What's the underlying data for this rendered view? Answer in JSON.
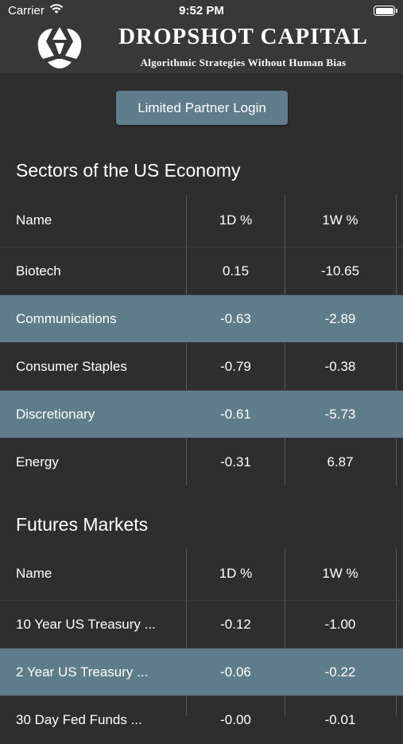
{
  "status_bar": {
    "carrier": "Carrier",
    "time": "9:52 PM"
  },
  "header": {
    "title": "DROPSHOT CAPITAL",
    "subtitle": "Algorithmic Strategies Without Human Bias",
    "logo_icon": "dropshot-logo-icon"
  },
  "login_button": {
    "label": "Limited Partner Login"
  },
  "colors": {
    "background": "#2e2e2e",
    "header": "#383838",
    "accent": "#5f7c8a"
  },
  "sectors": {
    "title": "Sectors of the US Economy",
    "columns": [
      "Name",
      "1D %",
      "1W %"
    ],
    "rows": [
      {
        "name": "Biotech",
        "d1": "0.15",
        "w1": "-10.65"
      },
      {
        "name": "Communications",
        "d1": "-0.63",
        "w1": "-2.89"
      },
      {
        "name": "Consumer Staples",
        "d1": "-0.79",
        "w1": "-0.38"
      },
      {
        "name": "Discretionary",
        "d1": "-0.61",
        "w1": "-5.73"
      },
      {
        "name": "Energy",
        "d1": "-0.31",
        "w1": "6.87"
      }
    ]
  },
  "futures": {
    "title": "Futures Markets",
    "columns": [
      "Name",
      "1D %",
      "1W %"
    ],
    "rows": [
      {
        "name": "10 Year US Treasury ...",
        "d1": "-0.12",
        "w1": "-1.00"
      },
      {
        "name": "2 Year US Treasury ...",
        "d1": "-0.06",
        "w1": "-0.22"
      },
      {
        "name": "30 Day Fed Funds ...",
        "d1": "-0.00",
        "w1": "-0.01"
      }
    ]
  }
}
